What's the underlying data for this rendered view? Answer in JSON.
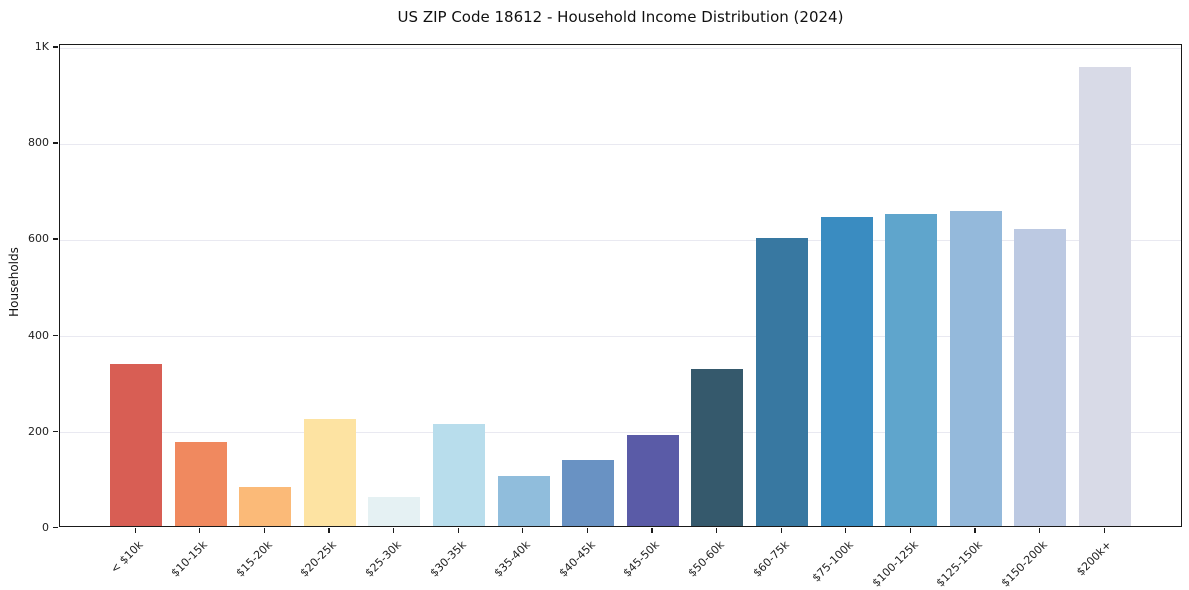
{
  "figure": {
    "background": "#ffffff",
    "spine_color": "#1a1a1a",
    "grid_color": "#e9e9f1",
    "tick_color": "#1a1a1a",
    "text_color": "#222222"
  },
  "chart_data": {
    "type": "bar",
    "title": "US ZIP Code 18612 - Household Income Distribution (2024)",
    "xlabel": "",
    "ylabel": "Households",
    "categories": [
      "< $10k",
      "$10-15k",
      "$15-20k",
      "$20-25k",
      "$25-30k",
      "$30-35k",
      "$35-40k",
      "$40-45k",
      "$45-50k",
      "$50-60k",
      "$60-75k",
      "$75-100k",
      "$100-125k",
      "$125-150k",
      "$150-200k",
      "$200k+"
    ],
    "values": [
      337,
      176,
      82,
      222,
      60,
      212,
      105,
      138,
      190,
      328,
      599,
      643,
      650,
      657,
      618,
      956
    ],
    "bar_colors": [
      "#D85E54",
      "#F0895F",
      "#FBBA78",
      "#FDE3A2",
      "#E5F1F3",
      "#B8DDEC",
      "#90BDDC",
      "#6992C3",
      "#5A5BA7",
      "#35596C",
      "#3878A1",
      "#3A8CC1",
      "#5FA5CC",
      "#94B9DB",
      "#BCC9E2",
      "#D8DAE7"
    ],
    "yticks": [
      0,
      200,
      400,
      600,
      800,
      1000
    ],
    "ytick_labels": [
      "0",
      "200",
      "400",
      "600",
      "800",
      "1K"
    ],
    "ylim": [
      0,
      1006
    ],
    "grid": "horizontal",
    "legend_position": "none",
    "x_label_rotation_deg": 45
  }
}
